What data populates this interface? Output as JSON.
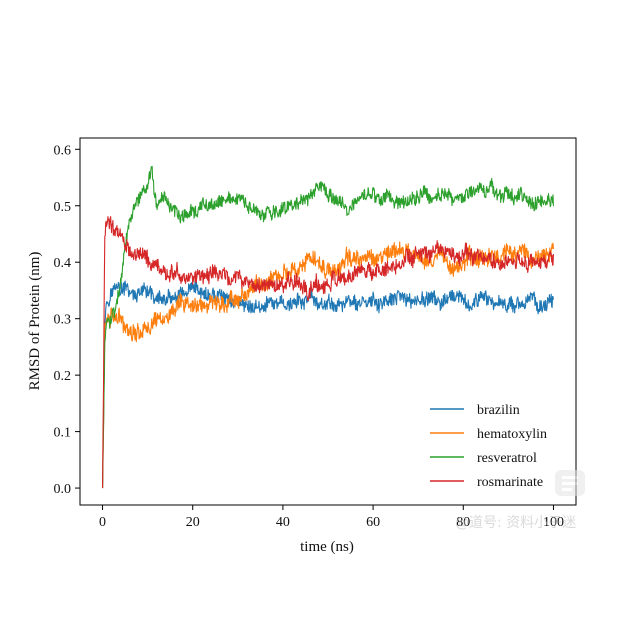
{
  "chart_data": {
    "type": "line",
    "title": "",
    "xlabel": "time (ns)",
    "ylabel": "RMSD of Protein (nm)",
    "xlim": [
      -5,
      105
    ],
    "ylim": [
      -0.03,
      0.62
    ],
    "xticks": [
      0,
      20,
      40,
      60,
      80,
      100
    ],
    "xtick_labels": [
      "0",
      "20",
      "40",
      "60",
      "80",
      "100"
    ],
    "yticks": [
      0.0,
      0.1,
      0.2,
      0.3,
      0.4,
      0.5,
      0.6
    ],
    "ytick_labels": [
      "0.0",
      "0.1",
      "0.2",
      "0.3",
      "0.4",
      "0.5",
      "0.6"
    ],
    "grid": false,
    "legend_position": "lower-right",
    "series": [
      {
        "name": "brazilin",
        "color": "#1f77b4",
        "x": [
          0,
          0.5,
          1,
          2,
          3,
          4,
          5,
          7,
          10,
          15,
          20,
          25,
          30,
          35,
          40,
          45,
          50,
          55,
          60,
          65,
          70,
          75,
          80,
          85,
          90,
          95,
          100
        ],
        "y": [
          0.0,
          0.3,
          0.34,
          0.35,
          0.36,
          0.35,
          0.35,
          0.34,
          0.34,
          0.33,
          0.34,
          0.34,
          0.33,
          0.32,
          0.325,
          0.33,
          0.325,
          0.33,
          0.325,
          0.33,
          0.335,
          0.33,
          0.325,
          0.33,
          0.33,
          0.33,
          0.325
        ],
        "noise": 0.014
      },
      {
        "name": "hematoxylin",
        "color": "#ff7f0e",
        "x": [
          0,
          0.5,
          1,
          2,
          3,
          5,
          8,
          10,
          15,
          20,
          25,
          30,
          35,
          40,
          45,
          50,
          55,
          60,
          65,
          70,
          75,
          80,
          85,
          90,
          95,
          100
        ],
        "y": [
          0.0,
          0.28,
          0.3,
          0.31,
          0.3,
          0.29,
          0.28,
          0.29,
          0.31,
          0.32,
          0.325,
          0.34,
          0.36,
          0.38,
          0.4,
          0.39,
          0.4,
          0.41,
          0.42,
          0.41,
          0.41,
          0.4,
          0.41,
          0.42,
          0.41,
          0.42
        ],
        "noise": 0.016
      },
      {
        "name": "resveratrol",
        "color": "#2ca02c",
        "x": [
          0,
          0.5,
          1,
          2,
          3,
          4,
          5,
          6,
          8,
          10,
          11,
          12,
          15,
          20,
          25,
          30,
          35,
          40,
          45,
          48,
          50,
          55,
          60,
          65,
          70,
          75,
          80,
          85,
          90,
          95,
          100
        ],
        "y": [
          0.0,
          0.26,
          0.29,
          0.31,
          0.33,
          0.36,
          0.42,
          0.47,
          0.51,
          0.53,
          0.56,
          0.5,
          0.49,
          0.49,
          0.5,
          0.51,
          0.48,
          0.49,
          0.51,
          0.53,
          0.52,
          0.5,
          0.52,
          0.51,
          0.52,
          0.52,
          0.52,
          0.53,
          0.52,
          0.51,
          0.51
        ],
        "noise": 0.013
      },
      {
        "name": "rosmarinate",
        "color": "#d62728",
        "x": [
          0,
          0.5,
          1,
          2,
          3,
          4,
          5,
          7,
          10,
          15,
          20,
          25,
          30,
          35,
          40,
          45,
          50,
          55,
          60,
          65,
          70,
          75,
          80,
          85,
          90,
          95,
          100
        ],
        "y": [
          0.0,
          0.45,
          0.47,
          0.47,
          0.46,
          0.45,
          0.44,
          0.42,
          0.4,
          0.38,
          0.37,
          0.38,
          0.37,
          0.36,
          0.36,
          0.36,
          0.36,
          0.37,
          0.38,
          0.4,
          0.41,
          0.41,
          0.41,
          0.405,
          0.4,
          0.4,
          0.4
        ],
        "noise": 0.015
      }
    ]
  },
  "watermark": {
    "icon": "chat-bubble-icon",
    "text": "@道号: 资料小子迷"
  }
}
